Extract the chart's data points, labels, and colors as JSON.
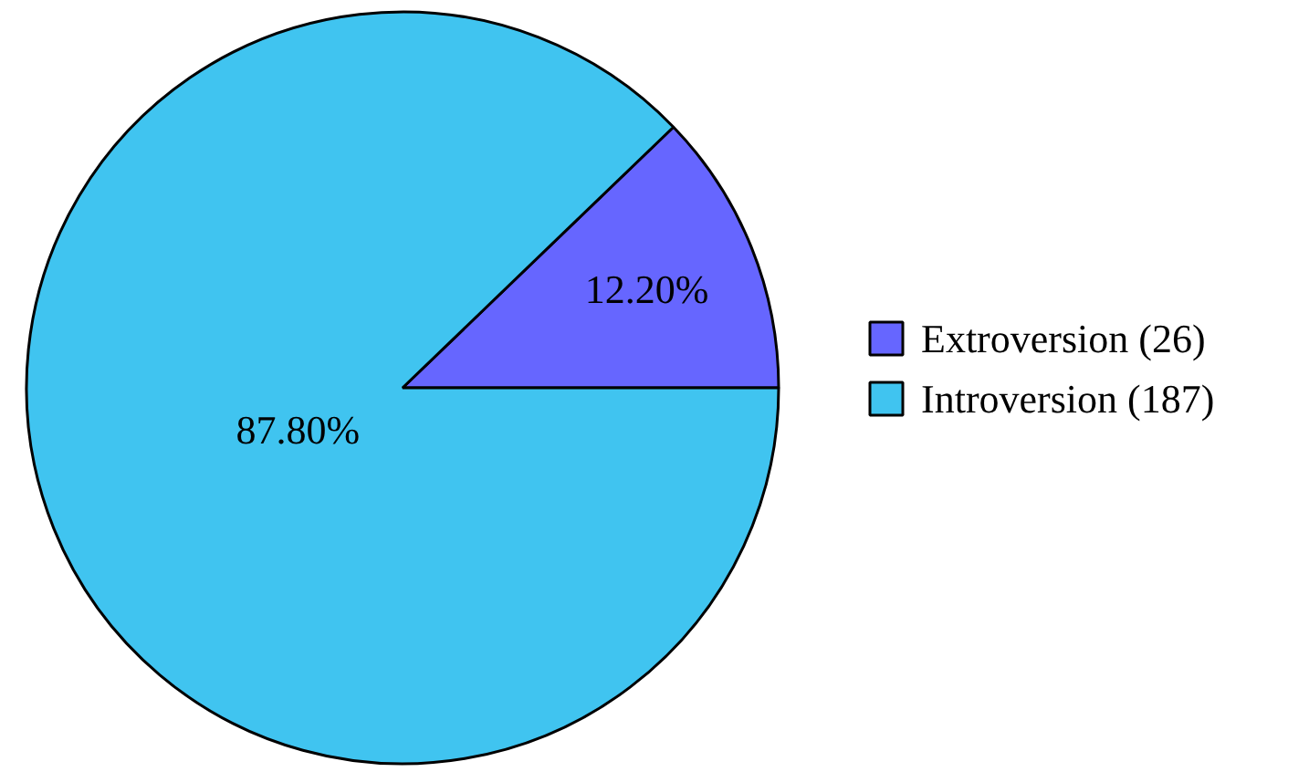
{
  "chart_data": {
    "type": "pie",
    "categories": [
      "Extroversion (26)",
      "Introversion (187)"
    ],
    "values": [
      12.2,
      87.8
    ],
    "colors": [
      "#6666ff",
      "#40c4f0"
    ],
    "value_labels": [
      "12.20%",
      "87.80%"
    ],
    "legend": "right"
  }
}
